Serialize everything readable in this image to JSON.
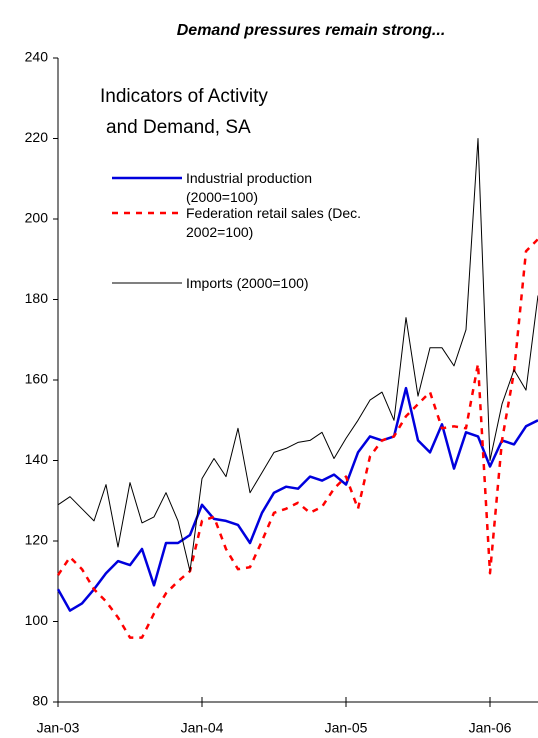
{
  "chart_data": {
    "type": "line",
    "title": "Demand pressures remain strong...",
    "annotations": [
      "Indicators of Activity",
      "and Demand, SA"
    ],
    "categories": [
      "Jan-03",
      null,
      null,
      null,
      null,
      null,
      null,
      null,
      null,
      null,
      null,
      null,
      "Jan-04",
      null,
      null,
      null,
      null,
      null,
      null,
      null,
      null,
      null,
      null,
      null,
      "Jan-05",
      null,
      null,
      null,
      null,
      null,
      null,
      null,
      null,
      null,
      null,
      null,
      "Jan-06",
      null,
      null,
      null,
      null
    ],
    "series": [
      {
        "name": "Industrial production (2000=100)",
        "color": "#0000dd",
        "style": "solid",
        "values": [
          108,
          102.7,
          104.5,
          108,
          112,
          115,
          114,
          118,
          109,
          119.5,
          119.5,
          121.5,
          129,
          125.5,
          125,
          124,
          119.5,
          127,
          132,
          133.5,
          133,
          136,
          135,
          136.5,
          134,
          142,
          146,
          145,
          146,
          158,
          145,
          142,
          149,
          138,
          147,
          146,
          138.5,
          145,
          144,
          148.5,
          150
        ]
      },
      {
        "name": "Federation retail sales (Dec. 2002=100)",
        "color": "#ff0000",
        "style": "dashed",
        "values": [
          111.5,
          116,
          113,
          108,
          105,
          101,
          96,
          96,
          102,
          107,
          110,
          112.5,
          125,
          126,
          118,
          113,
          113.5,
          120,
          127,
          128,
          129.5,
          127,
          128.5,
          133,
          136,
          128,
          141,
          145,
          146,
          151,
          154,
          157,
          148,
          148.5,
          148,
          164,
          112,
          145,
          162,
          192,
          195
        ]
      },
      {
        "name": "Imports (2000=100)",
        "color": "#000000",
        "style": "thin",
        "values": [
          129,
          131,
          128,
          125,
          134,
          118.5,
          134.5,
          124.5,
          126,
          132,
          125,
          112.5,
          135.5,
          140.5,
          136,
          148,
          132,
          137,
          142,
          143,
          144.5,
          145,
          147,
          140.5,
          145.5,
          150,
          155,
          157,
          150,
          175.5,
          156,
          168,
          168,
          163.5,
          172.5,
          220,
          140,
          154,
          162.5,
          157.5,
          181
        ]
      }
    ],
    "ylim": [
      80,
      240
    ],
    "yticks": [
      80,
      100,
      120,
      140,
      160,
      180,
      200,
      220,
      240
    ],
    "legend": "upper left"
  }
}
